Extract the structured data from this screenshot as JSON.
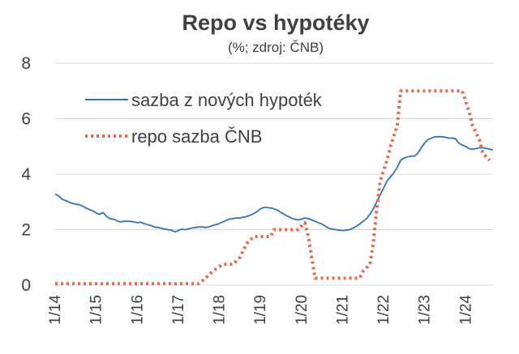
{
  "chart_data": {
    "type": "line",
    "title": "Repo vs hypotéky",
    "subtitle": "(%; zdroj: ČNB)",
    "xlabel": "",
    "ylabel": "",
    "ylim": [
      0,
      8
    ],
    "yticks": [
      0,
      2,
      4,
      6,
      8
    ],
    "x_ticks": [
      "1/14",
      "1/15",
      "1/16",
      "1/17",
      "1/18",
      "1/19",
      "1/20",
      "1/21",
      "1/22",
      "1/23",
      "1/24"
    ],
    "x_range": [
      "2014-01",
      "2024-09"
    ],
    "grid": "horizontal",
    "legend_position": "top-left",
    "series": [
      {
        "name": "sazba z nových hypoték",
        "color": "#2e75b6",
        "style": "solid",
        "points": [
          [
            "2014-01",
            3.28
          ],
          [
            "2014-02",
            3.22
          ],
          [
            "2014-03",
            3.1
          ],
          [
            "2014-04",
            3.05
          ],
          [
            "2014-05",
            3.0
          ],
          [
            "2014-06",
            2.95
          ],
          [
            "2014-07",
            2.92
          ],
          [
            "2014-08",
            2.9
          ],
          [
            "2014-09",
            2.85
          ],
          [
            "2014-10",
            2.78
          ],
          [
            "2014-11",
            2.72
          ],
          [
            "2014-12",
            2.68
          ],
          [
            "2015-01",
            2.6
          ],
          [
            "2015-02",
            2.55
          ],
          [
            "2015-03",
            2.62
          ],
          [
            "2015-04",
            2.48
          ],
          [
            "2015-05",
            2.4
          ],
          [
            "2015-06",
            2.38
          ],
          [
            "2015-07",
            2.33
          ],
          [
            "2015-08",
            2.28
          ],
          [
            "2015-09",
            2.3
          ],
          [
            "2015-10",
            2.3
          ],
          [
            "2015-11",
            2.3
          ],
          [
            "2015-12",
            2.28
          ],
          [
            "2016-01",
            2.25
          ],
          [
            "2016-02",
            2.27
          ],
          [
            "2016-03",
            2.22
          ],
          [
            "2016-04",
            2.18
          ],
          [
            "2016-05",
            2.15
          ],
          [
            "2016-06",
            2.1
          ],
          [
            "2016-07",
            2.08
          ],
          [
            "2016-08",
            2.05
          ],
          [
            "2016-09",
            2.02
          ],
          [
            "2016-10",
            2.0
          ],
          [
            "2016-11",
            1.98
          ],
          [
            "2016-12",
            1.92
          ],
          [
            "2017-01",
            1.97
          ],
          [
            "2017-02",
            2.02
          ],
          [
            "2017-03",
            2.0
          ],
          [
            "2017-04",
            2.03
          ],
          [
            "2017-05",
            2.06
          ],
          [
            "2017-06",
            2.08
          ],
          [
            "2017-07",
            2.1
          ],
          [
            "2017-08",
            2.1
          ],
          [
            "2017-09",
            2.08
          ],
          [
            "2017-10",
            2.1
          ],
          [
            "2017-11",
            2.15
          ],
          [
            "2017-12",
            2.18
          ],
          [
            "2018-01",
            2.22
          ],
          [
            "2018-02",
            2.28
          ],
          [
            "2018-03",
            2.33
          ],
          [
            "2018-04",
            2.38
          ],
          [
            "2018-05",
            2.4
          ],
          [
            "2018-06",
            2.42
          ],
          [
            "2018-07",
            2.42
          ],
          [
            "2018-08",
            2.45
          ],
          [
            "2018-09",
            2.48
          ],
          [
            "2018-10",
            2.52
          ],
          [
            "2018-11",
            2.58
          ],
          [
            "2018-12",
            2.65
          ],
          [
            "2019-01",
            2.75
          ],
          [
            "2019-02",
            2.8
          ],
          [
            "2019-03",
            2.8
          ],
          [
            "2019-04",
            2.78
          ],
          [
            "2019-05",
            2.75
          ],
          [
            "2019-06",
            2.7
          ],
          [
            "2019-07",
            2.62
          ],
          [
            "2019-08",
            2.55
          ],
          [
            "2019-09",
            2.48
          ],
          [
            "2019-10",
            2.42
          ],
          [
            "2019-11",
            2.38
          ],
          [
            "2019-12",
            2.35
          ],
          [
            "2020-01",
            2.38
          ],
          [
            "2020-02",
            2.42
          ],
          [
            "2020-03",
            2.4
          ],
          [
            "2020-04",
            2.35
          ],
          [
            "2020-05",
            2.3
          ],
          [
            "2020-06",
            2.25
          ],
          [
            "2020-07",
            2.2
          ],
          [
            "2020-08",
            2.12
          ],
          [
            "2020-09",
            2.05
          ],
          [
            "2020-10",
            2.02
          ],
          [
            "2020-11",
            2.0
          ],
          [
            "2020-12",
            1.98
          ],
          [
            "2021-01",
            1.97
          ],
          [
            "2021-02",
            1.98
          ],
          [
            "2021-03",
            2.0
          ],
          [
            "2021-04",
            2.05
          ],
          [
            "2021-05",
            2.12
          ],
          [
            "2021-06",
            2.2
          ],
          [
            "2021-07",
            2.3
          ],
          [
            "2021-08",
            2.4
          ],
          [
            "2021-09",
            2.55
          ],
          [
            "2021-10",
            2.75
          ],
          [
            "2021-11",
            3.0
          ],
          [
            "2021-12",
            3.25
          ],
          [
            "2022-01",
            3.5
          ],
          [
            "2022-02",
            3.75
          ],
          [
            "2022-03",
            3.9
          ],
          [
            "2022-04",
            4.05
          ],
          [
            "2022-05",
            4.25
          ],
          [
            "2022-06",
            4.5
          ],
          [
            "2022-07",
            4.58
          ],
          [
            "2022-08",
            4.62
          ],
          [
            "2022-09",
            4.65
          ],
          [
            "2022-10",
            4.65
          ],
          [
            "2022-11",
            4.75
          ],
          [
            "2022-12",
            4.95
          ],
          [
            "2023-01",
            5.12
          ],
          [
            "2023-02",
            5.25
          ],
          [
            "2023-03",
            5.3
          ],
          [
            "2023-04",
            5.35
          ],
          [
            "2023-05",
            5.35
          ],
          [
            "2023-06",
            5.35
          ],
          [
            "2023-07",
            5.33
          ],
          [
            "2023-08",
            5.3
          ],
          [
            "2023-09",
            5.3
          ],
          [
            "2023-10",
            5.28
          ],
          [
            "2023-11",
            5.12
          ],
          [
            "2023-12",
            5.05
          ],
          [
            "2024-01",
            5.0
          ],
          [
            "2024-02",
            4.92
          ],
          [
            "2024-03",
            4.9
          ],
          [
            "2024-04",
            4.92
          ],
          [
            "2024-05",
            4.95
          ],
          [
            "2024-06",
            4.95
          ],
          [
            "2024-07",
            4.93
          ],
          [
            "2024-08",
            4.9
          ],
          [
            "2024-09",
            4.88
          ]
        ]
      },
      {
        "name": "repo sazba ČNB",
        "color": "#e46c4a",
        "style": "dotted",
        "points": [
          [
            "2014-01",
            0.05
          ],
          [
            "2017-07",
            0.05
          ],
          [
            "2017-09",
            0.25
          ],
          [
            "2017-11",
            0.5
          ],
          [
            "2018-02",
            0.75
          ],
          [
            "2018-05",
            0.75
          ],
          [
            "2018-07",
            1.0
          ],
          [
            "2018-09",
            1.5
          ],
          [
            "2018-11",
            1.75
          ],
          [
            "2019-01",
            1.75
          ],
          [
            "2019-04",
            1.75
          ],
          [
            "2019-05",
            2.0
          ],
          [
            "2019-12",
            2.0
          ],
          [
            "2020-02",
            2.25
          ],
          [
            "2020-03",
            1.75
          ],
          [
            "2020-04",
            1.0
          ],
          [
            "2020-05",
            0.25
          ],
          [
            "2021-06",
            0.25
          ],
          [
            "2021-07",
            0.5
          ],
          [
            "2021-09",
            0.75
          ],
          [
            "2021-10",
            1.5
          ],
          [
            "2021-11",
            2.75
          ],
          [
            "2021-12",
            3.75
          ],
          [
            "2022-02",
            4.5
          ],
          [
            "2022-03",
            5.0
          ],
          [
            "2022-05",
            5.75
          ],
          [
            "2022-06",
            7.0
          ],
          [
            "2023-12",
            7.0
          ],
          [
            "2024-02",
            6.25
          ],
          [
            "2024-03",
            5.75
          ],
          [
            "2024-05",
            5.25
          ],
          [
            "2024-06",
            4.75
          ],
          [
            "2024-08",
            4.5
          ]
        ]
      }
    ]
  }
}
